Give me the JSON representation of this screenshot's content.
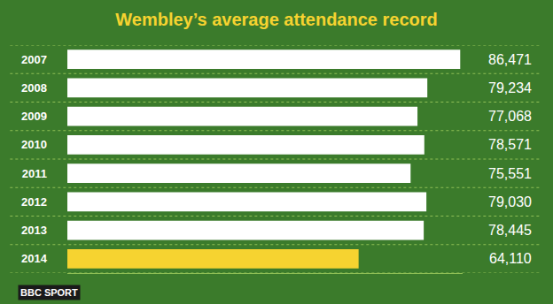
{
  "chart_data": {
    "type": "bar",
    "title": "Wembley’s average attendance record",
    "orientation": "horizontal",
    "categories": [
      "2007",
      "2008",
      "2009",
      "2010",
      "2011",
      "2012",
      "2013",
      "2014"
    ],
    "values": [
      86471,
      79234,
      77068,
      78571,
      75551,
      79030,
      78445,
      64110
    ],
    "value_labels": [
      "86,471",
      "79,234",
      "77,068",
      "78,571",
      "75,551",
      "79,030",
      "78,445",
      "64,110"
    ],
    "colors": [
      "#ffffff",
      "#ffffff",
      "#ffffff",
      "#ffffff",
      "#ffffff",
      "#ffffff",
      "#ffffff",
      "#f6d330"
    ],
    "data_labels": true,
    "xlim": [
      0,
      87000
    ],
    "tick_labels": "y",
    "grid": false,
    "annotations": [
      "BBC SPORT"
    ]
  }
}
